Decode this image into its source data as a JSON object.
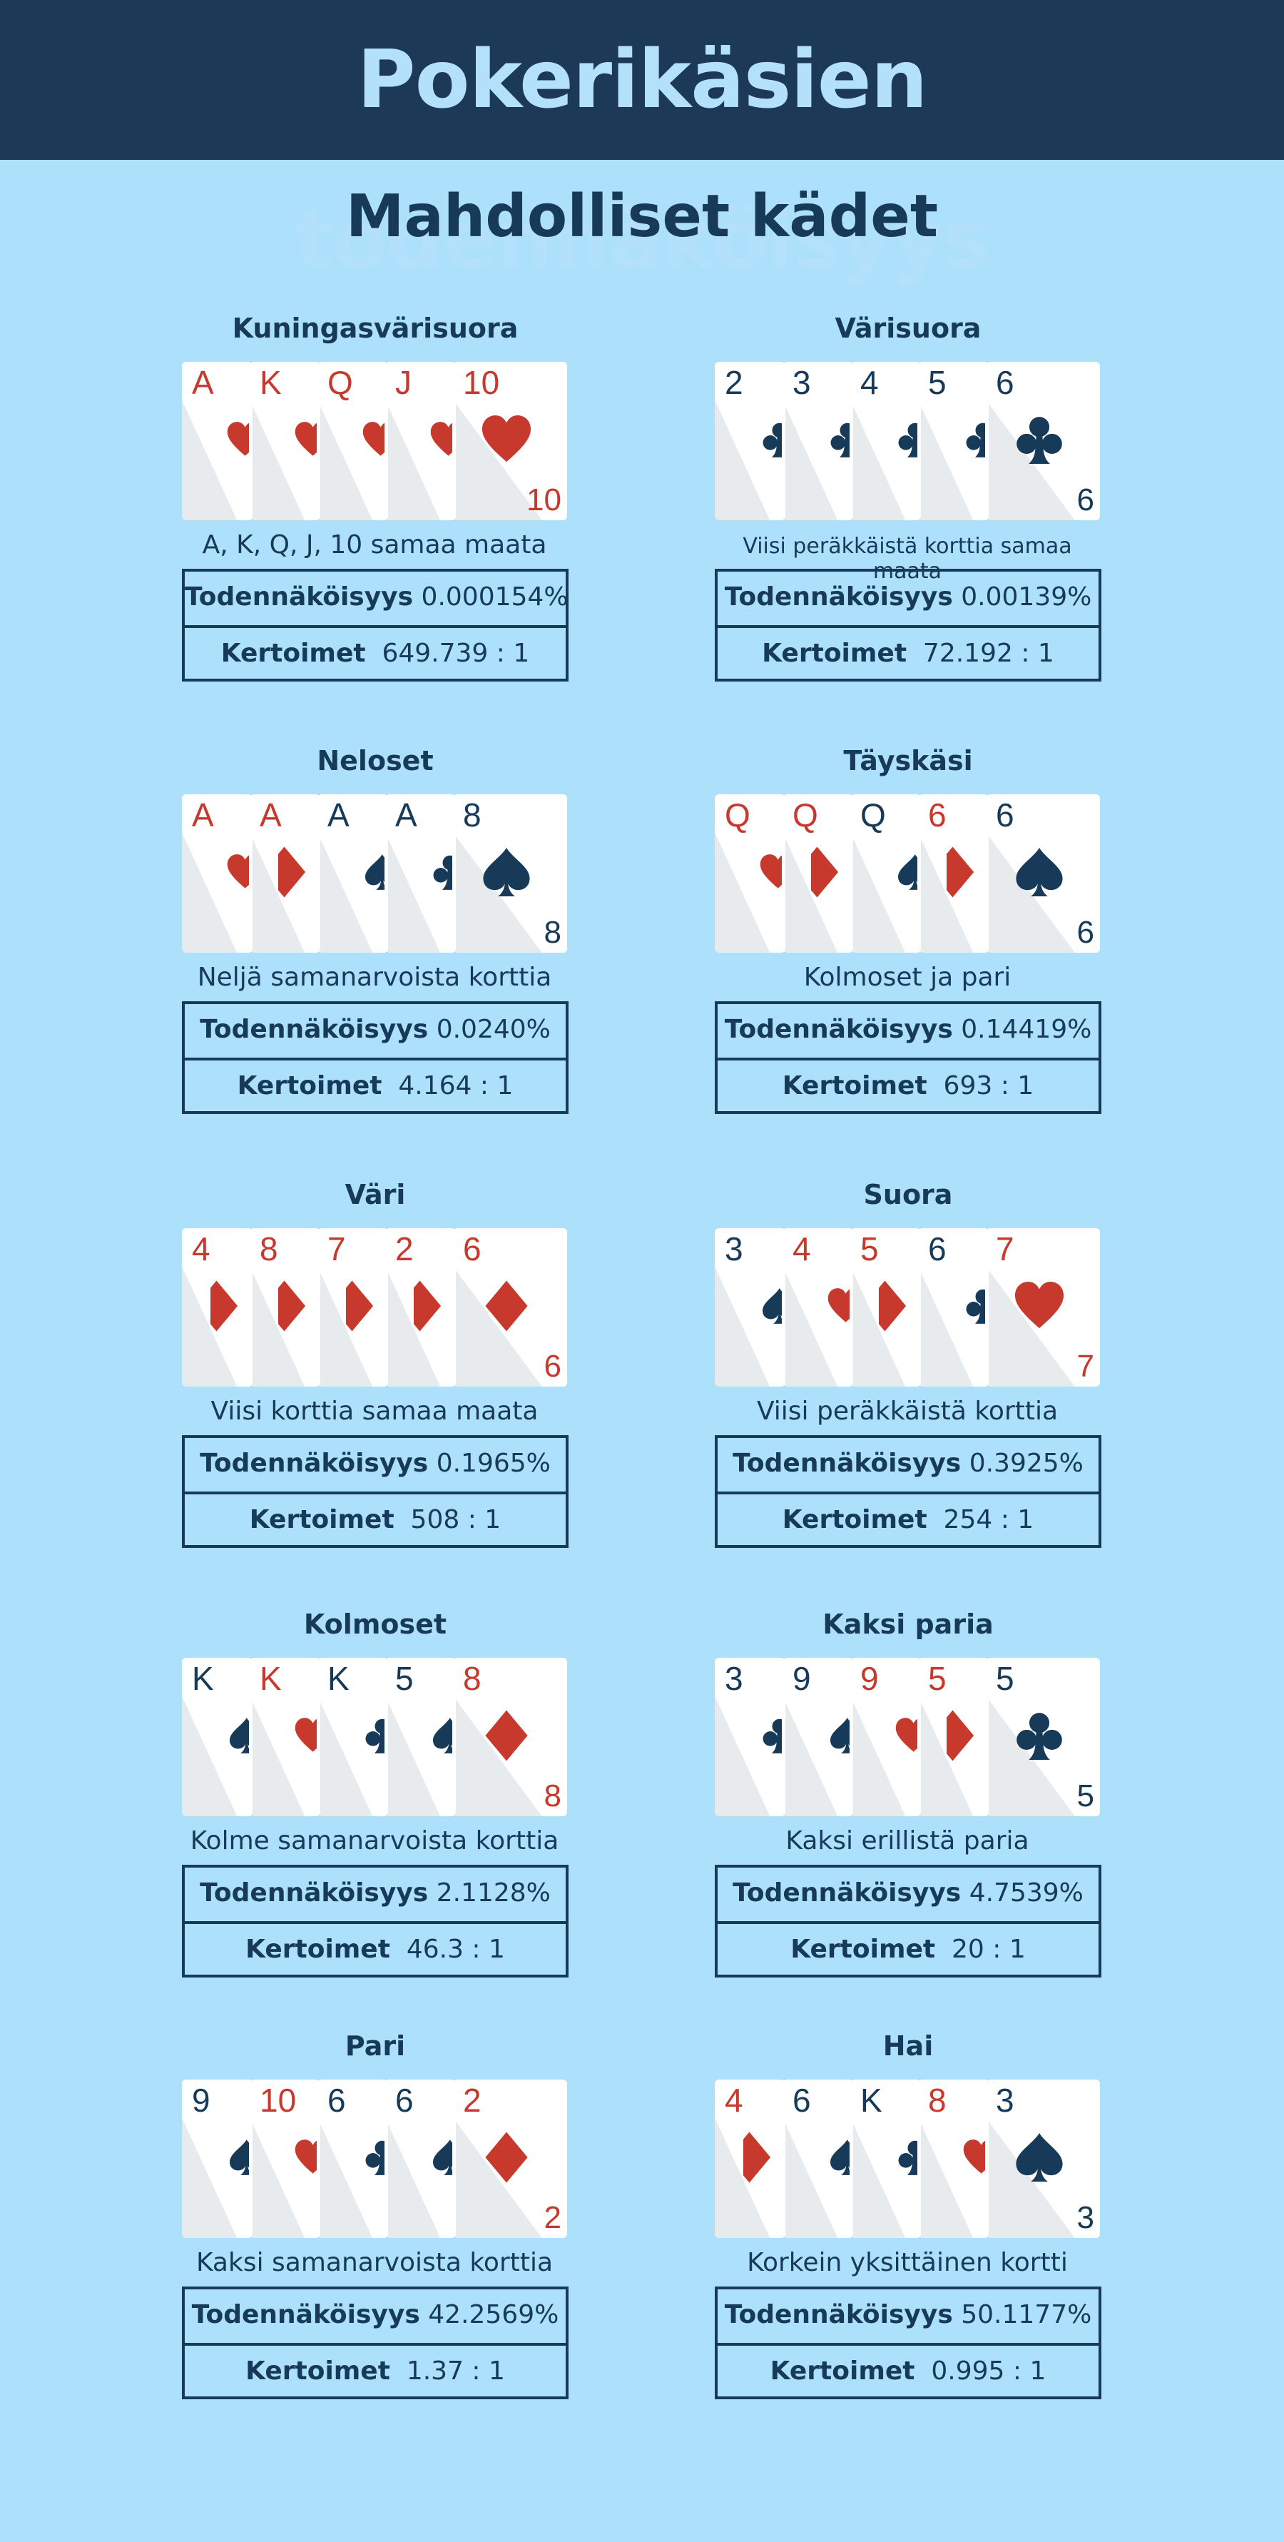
{
  "header": {
    "title": "Pokerikäsien todennäköisyys"
  },
  "subtitle": "Mahdolliset kädet",
  "labels": {
    "probability": "Todennäköisyys",
    "odds": "Kertoimet"
  },
  "colors": {
    "header_bg": "#1c3a58",
    "page_bg": "#ade0fa",
    "red_suit": "#c8392d",
    "dark_suit": "#173a58"
  },
  "hands": [
    {
      "name": "Kuningasvärisuora",
      "description": "A, K, Q, J, 10 samaa maata",
      "probability": "0.000154%",
      "odds": "649.739 : 1",
      "cards": [
        {
          "rank": "A",
          "suit": "heart"
        },
        {
          "rank": "K",
          "suit": "heart"
        },
        {
          "rank": "Q",
          "suit": "heart"
        },
        {
          "rank": "J",
          "suit": "heart"
        },
        {
          "rank": "10",
          "suit": "heart"
        }
      ]
    },
    {
      "name": "Värisuora",
      "description": "Viisi peräkkäistä korttia samaa maata",
      "probability": "0.00139%",
      "odds": "72.192 : 1",
      "cards": [
        {
          "rank": "2",
          "suit": "club"
        },
        {
          "rank": "3",
          "suit": "club"
        },
        {
          "rank": "4",
          "suit": "club"
        },
        {
          "rank": "5",
          "suit": "club"
        },
        {
          "rank": "6",
          "suit": "club"
        }
      ]
    },
    {
      "name": "Neloset",
      "description": "Neljä samanarvoista korttia",
      "probability": "0.0240%",
      "odds": "4.164 : 1",
      "cards": [
        {
          "rank": "A",
          "suit": "heart"
        },
        {
          "rank": "A",
          "suit": "diamond"
        },
        {
          "rank": "A",
          "suit": "spade"
        },
        {
          "rank": "A",
          "suit": "club"
        },
        {
          "rank": "8",
          "suit": "spade"
        }
      ]
    },
    {
      "name": "Täyskäsi",
      "description": "Kolmoset ja pari",
      "probability": "0.14419%",
      "odds": "693 : 1",
      "cards": [
        {
          "rank": "Q",
          "suit": "heart"
        },
        {
          "rank": "Q",
          "suit": "diamond"
        },
        {
          "rank": "Q",
          "suit": "spade"
        },
        {
          "rank": "6",
          "suit": "diamond"
        },
        {
          "rank": "6",
          "suit": "spade"
        }
      ]
    },
    {
      "name": "Väri",
      "description": "Viisi korttia samaa maata",
      "probability": "0.1965%",
      "odds": "508 : 1",
      "cards": [
        {
          "rank": "4",
          "suit": "diamond"
        },
        {
          "rank": "8",
          "suit": "diamond"
        },
        {
          "rank": "7",
          "suit": "diamond"
        },
        {
          "rank": "2",
          "suit": "diamond"
        },
        {
          "rank": "6",
          "suit": "diamond"
        }
      ]
    },
    {
      "name": "Suora",
      "description": "Viisi peräkkäistä korttia",
      "probability": "0.3925%",
      "odds": "254 : 1",
      "cards": [
        {
          "rank": "3",
          "suit": "spade"
        },
        {
          "rank": "4",
          "suit": "heart"
        },
        {
          "rank": "5",
          "suit": "diamond"
        },
        {
          "rank": "6",
          "suit": "club"
        },
        {
          "rank": "7",
          "suit": "heart"
        }
      ]
    },
    {
      "name": "Kolmoset",
      "description": "Kolme samanarvoista korttia",
      "probability": "2.1128%",
      "odds": "46.3 : 1",
      "cards": [
        {
          "rank": "K",
          "suit": "spade"
        },
        {
          "rank": "K",
          "suit": "heart"
        },
        {
          "rank": "K",
          "suit": "club"
        },
        {
          "rank": "5",
          "suit": "spade"
        },
        {
          "rank": "8",
          "suit": "diamond"
        }
      ]
    },
    {
      "name": "Kaksi paria",
      "description": "Kaksi erillistä paria",
      "probability": "4.7539%",
      "odds": "20 : 1",
      "cards": [
        {
          "rank": "3",
          "suit": "club"
        },
        {
          "rank": "9",
          "suit": "spade"
        },
        {
          "rank": "9",
          "suit": "heart"
        },
        {
          "rank": "5",
          "suit": "diamond"
        },
        {
          "rank": "5",
          "suit": "club"
        }
      ]
    },
    {
      "name": "Pari",
      "description": "Kaksi samanarvoista korttia",
      "probability": "42.2569%",
      "odds": "1.37 : 1",
      "cards": [
        {
          "rank": "9",
          "suit": "spade"
        },
        {
          "rank": "10",
          "suit": "heart"
        },
        {
          "rank": "6",
          "suit": "club"
        },
        {
          "rank": "6",
          "suit": "spade"
        },
        {
          "rank": "2",
          "suit": "diamond"
        }
      ]
    },
    {
      "name": "Hai",
      "description": "Korkein yksittäinen kortti",
      "probability": "50.1177%",
      "odds": "0.995 : 1",
      "cards": [
        {
          "rank": "4",
          "suit": "diamond"
        },
        {
          "rank": "6",
          "suit": "spade"
        },
        {
          "rank": "K",
          "suit": "club"
        },
        {
          "rank": "8",
          "suit": "heart"
        },
        {
          "rank": "3",
          "suit": "spade"
        }
      ]
    }
  ]
}
